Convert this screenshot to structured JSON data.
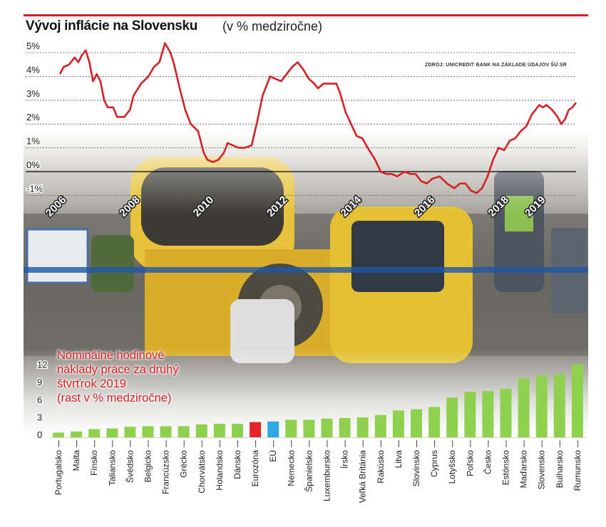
{
  "header": {
    "title": "Vývoj inflácie na Slovensku",
    "subtitle": "(v % medziročne)",
    "source": "ZDROJ: UNICREDIT BANK NA ZÁKLADE ÚDAJOV ŠÚ SR"
  },
  "colors": {
    "accent": "#d62027",
    "bar_default": "#8fd14f",
    "bar_eurozone": "#e3262b",
    "bar_eu": "#2ea9e6"
  },
  "chart_data": [
    {
      "type": "line",
      "title": "Vývoj inflácie na Slovensku",
      "subtitle": "(v % medziročne)",
      "ylim": [
        -1.2,
        5.6
      ],
      "yticks": [
        5,
        4,
        3,
        2,
        1,
        0,
        -1
      ],
      "ytick_labels": [
        "5%",
        "4%",
        "3%",
        "2%",
        "1%",
        "0%",
        "-1%"
      ],
      "xlim": [
        2006.0,
        2020.0
      ],
      "year_labels": [
        "2006",
        "2008",
        "2010",
        "2012",
        "2014",
        "2016",
        "2018",
        "2019"
      ],
      "year_label_positions": [
        2006.0,
        2008.0,
        2010.0,
        2012.0,
        2014.0,
        2016.0,
        2018.0,
        2019.0
      ],
      "series": [
        {
          "points": [
            [
              2006.0,
              4.1
            ],
            [
              2006.1,
              4.4
            ],
            [
              2006.25,
              4.5
            ],
            [
              2006.4,
              4.8
            ],
            [
              2006.5,
              4.6
            ],
            [
              2006.6,
              4.9
            ],
            [
              2006.7,
              5.1
            ],
            [
              2006.8,
              4.6
            ],
            [
              2006.9,
              3.8
            ],
            [
              2007.0,
              4.1
            ],
            [
              2007.1,
              3.8
            ],
            [
              2007.2,
              3.0
            ],
            [
              2007.3,
              2.7
            ],
            [
              2007.45,
              2.7
            ],
            [
              2007.55,
              2.3
            ],
            [
              2007.75,
              2.3
            ],
            [
              2007.9,
              2.6
            ],
            [
              2008.0,
              3.2
            ],
            [
              2008.2,
              3.7
            ],
            [
              2008.4,
              4.0
            ],
            [
              2008.55,
              4.4
            ],
            [
              2008.7,
              4.6
            ],
            [
              2008.85,
              5.4
            ],
            [
              2009.0,
              5.0
            ],
            [
              2009.1,
              4.5
            ],
            [
              2009.25,
              3.5
            ],
            [
              2009.4,
              2.6
            ],
            [
              2009.55,
              2.0
            ],
            [
              2009.75,
              1.7
            ],
            [
              2009.9,
              0.8
            ],
            [
              2010.0,
              0.5
            ],
            [
              2010.15,
              0.4
            ],
            [
              2010.3,
              0.5
            ],
            [
              2010.45,
              0.8
            ],
            [
              2010.55,
              1.2
            ],
            [
              2010.7,
              1.1
            ],
            [
              2010.85,
              1.0
            ],
            [
              2011.0,
              1.0
            ],
            [
              2011.2,
              1.1
            ],
            [
              2011.35,
              2.1
            ],
            [
              2011.5,
              3.2
            ],
            [
              2011.7,
              4.0
            ],
            [
              2011.85,
              3.9
            ],
            [
              2012.0,
              3.8
            ],
            [
              2012.15,
              4.1
            ],
            [
              2012.3,
              4.4
            ],
            [
              2012.45,
              4.6
            ],
            [
              2012.6,
              4.3
            ],
            [
              2012.75,
              3.9
            ],
            [
              2012.9,
              3.7
            ],
            [
              2013.0,
              3.5
            ],
            [
              2013.15,
              3.7
            ],
            [
              2013.35,
              3.7
            ],
            [
              2013.5,
              3.7
            ],
            [
              2013.6,
              3.3
            ],
            [
              2013.75,
              2.5
            ],
            [
              2013.9,
              2.0
            ],
            [
              2014.05,
              1.5
            ],
            [
              2014.2,
              1.4
            ],
            [
              2014.35,
              1.0
            ],
            [
              2014.55,
              0.5
            ],
            [
              2014.7,
              0.0
            ],
            [
              2014.85,
              -0.1
            ],
            [
              2015.0,
              -0.1
            ],
            [
              2015.15,
              -0.2
            ],
            [
              2015.35,
              0.0
            ],
            [
              2015.5,
              -0.1
            ],
            [
              2015.65,
              -0.1
            ],
            [
              2015.8,
              -0.4
            ],
            [
              2015.95,
              -0.5
            ],
            [
              2016.1,
              -0.3
            ],
            [
              2016.3,
              -0.2
            ],
            [
              2016.5,
              -0.5
            ],
            [
              2016.7,
              -0.7
            ],
            [
              2016.85,
              -0.5
            ],
            [
              2017.0,
              -0.5
            ],
            [
              2017.15,
              -0.8
            ],
            [
              2017.3,
              -0.9
            ],
            [
              2017.45,
              -0.7
            ],
            [
              2017.6,
              -0.2
            ],
            [
              2017.75,
              0.5
            ],
            [
              2017.9,
              1.0
            ],
            [
              2018.05,
              0.9
            ],
            [
              2018.2,
              1.3
            ],
            [
              2018.35,
              1.4
            ],
            [
              2018.5,
              1.7
            ],
            [
              2018.65,
              1.9
            ],
            [
              2018.8,
              2.4
            ],
            [
              2018.9,
              2.6
            ],
            [
              2019.0,
              2.8
            ],
            [
              2019.1,
              2.7
            ],
            [
              2019.2,
              2.8
            ],
            [
              2019.35,
              2.6
            ],
            [
              2019.5,
              2.3
            ],
            [
              2019.6,
              2.0
            ],
            [
              2019.7,
              2.2
            ],
            [
              2019.8,
              2.6
            ],
            [
              2019.9,
              2.7
            ],
            [
              2020.0,
              2.9
            ]
          ]
        }
      ]
    },
    {
      "type": "bar",
      "title": "Nominálne hodinové náklady práce za druhý štvrťrok 2019 (rast v % medziročne)",
      "title_lines": [
        "Nominálne hodinové",
        "náklady práce za druhý",
        "štvrťrok 2019",
        "(rast v % medziročne)"
      ],
      "ylim": [
        0,
        13
      ],
      "yticks": [
        0,
        3,
        6,
        9,
        12
      ],
      "categories": [
        "Portugalsko",
        "Malta",
        "Fínsko",
        "Taliansko",
        "Švédsko",
        "Belgicko",
        "Francúzsko",
        "Grécko",
        "Chorvátsko",
        "Holandsko",
        "Dánsko",
        "Eurozóna",
        "EÚ",
        "Nemecko",
        "Španielsko",
        "Luxembursko",
        "Írsko",
        "Veľká Británia",
        "Rakúsko",
        "Litva",
        "Slovinsko",
        "Cyprus",
        "Lotyšsko",
        "Poľsko",
        "Česko",
        "Estónsko",
        "Maďarsko",
        "Slovensko",
        "Bulharsko",
        "Rumunsko"
      ],
      "values": [
        0.8,
        1.0,
        1.4,
        1.5,
        1.8,
        1.9,
        1.9,
        1.9,
        2.2,
        2.3,
        2.3,
        2.6,
        2.7,
        3.0,
        3.0,
        3.2,
        3.3,
        3.4,
        3.8,
        4.6,
        4.8,
        5.2,
        6.8,
        7.8,
        7.9,
        8.3,
        10.1,
        10.6,
        10.8,
        12.5
      ],
      "highlight": {
        "Eurozóna": "#e3262b",
        "EÚ": "#2ea9e6"
      }
    }
  ]
}
